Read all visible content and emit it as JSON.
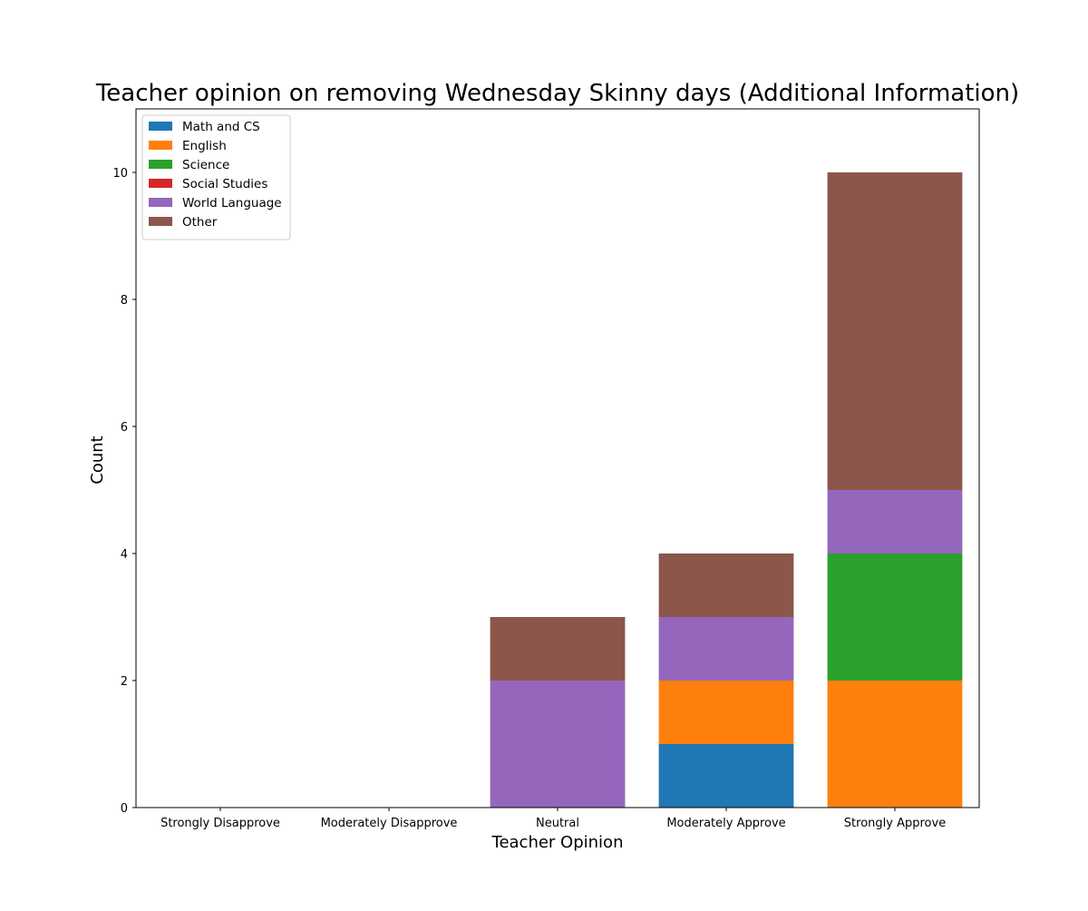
{
  "chart_data": {
    "type": "bar",
    "stacked": true,
    "title": "Teacher opinion on removing Wednesday Skinny days (Additional Information)",
    "xlabel": "Teacher Opinion",
    "ylabel": "Count",
    "categories": [
      "Strongly Disapprove",
      "Moderately Disapprove",
      "Neutral",
      "Moderately Approve",
      "Strongly Approve"
    ],
    "series": [
      {
        "name": "Math and CS",
        "color": "#1f77b4",
        "values": [
          0,
          0,
          0,
          1,
          0
        ]
      },
      {
        "name": "English",
        "color": "#ff7f0e",
        "values": [
          0,
          0,
          0,
          1,
          2
        ]
      },
      {
        "name": "Science",
        "color": "#2ca02c",
        "values": [
          0,
          0,
          0,
          0,
          2
        ]
      },
      {
        "name": "Social Studies",
        "color": "#d62728",
        "values": [
          0,
          0,
          0,
          0,
          0
        ]
      },
      {
        "name": "World Language",
        "color": "#9467bd",
        "values": [
          0,
          0,
          2,
          1,
          1
        ]
      },
      {
        "name": "Other",
        "color": "#8c564b",
        "values": [
          0,
          0,
          1,
          1,
          5
        ]
      }
    ],
    "ylim": [
      0,
      11
    ],
    "yticks": [
      0,
      2,
      4,
      6,
      8,
      10
    ],
    "grid": false,
    "legend_position": "top-left"
  }
}
